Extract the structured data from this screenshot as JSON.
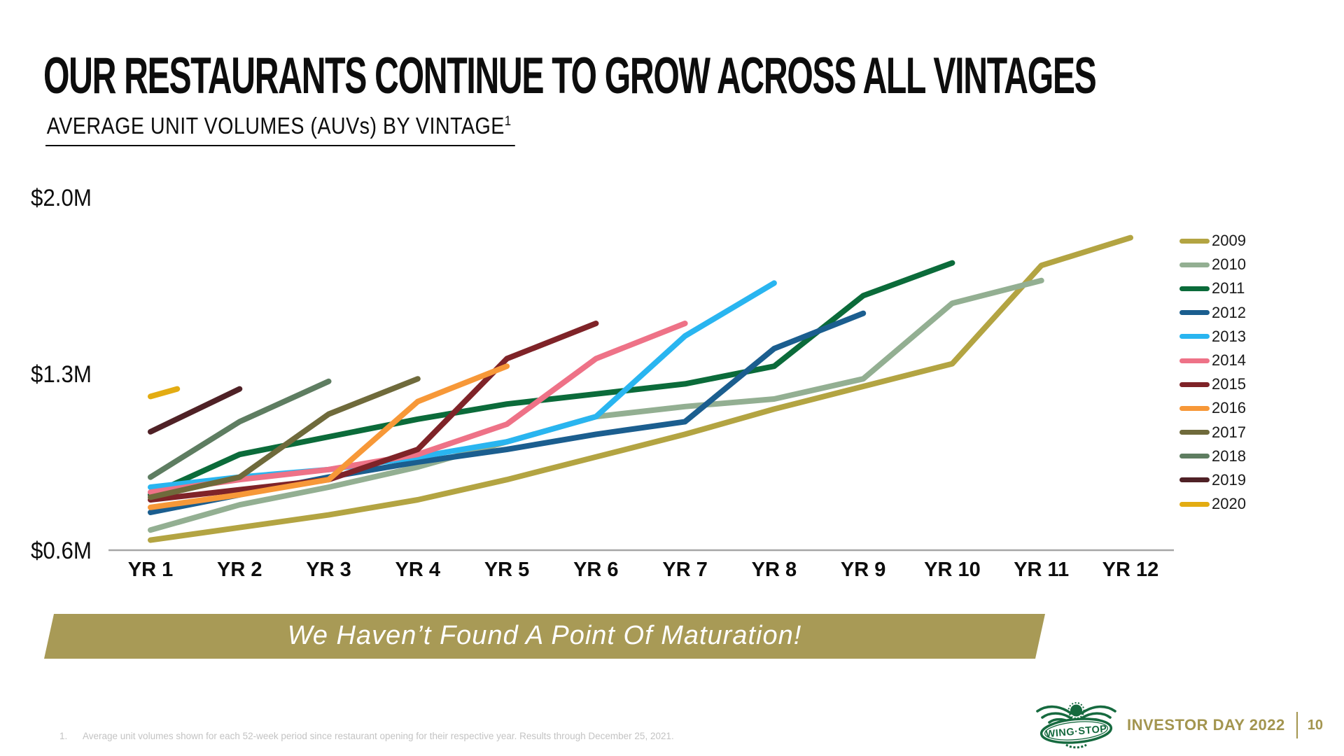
{
  "page": {
    "title": "OUR RESTAURANTS CONTINUE TO GROW ACROSS ALL VINTAGES",
    "subtitle": "AVERAGE UNIT VOLUMES (AUVs) BY VINTAGE",
    "subtitle_superscript": "1",
    "banner": "We Haven’t Found A Point Of Maturation!",
    "footnote_number": "1.",
    "footnote": "Average unit volumes shown for each 52-week period since restaurant opening for their respective year. Results through December 25, 2021.",
    "footer_brand": "INVESTOR DAY 2022",
    "page_number": "10",
    "logo_text": "WING·STOP"
  },
  "colors": {
    "accent_olive": "#a89a56",
    "brand_gold": "#a3954f",
    "logo_green": "#166a3f",
    "axis_gray": "#a6a6a6",
    "footnote_gray": "#c3c3c3",
    "text_black": "#0d0d0d"
  },
  "chart_data": {
    "type": "line",
    "title": "AVERAGE UNIT VOLUMES (AUVs) BY VINTAGE",
    "unit": "$M",
    "ylim": [
      0.6,
      2.0
    ],
    "grid": false,
    "legend_position": "right",
    "y_labels": [
      {
        "text": "$2.0M",
        "value": 2.0
      },
      {
        "text": "$1.3M",
        "value": 1.3
      },
      {
        "text": "$0.6M",
        "value": 0.6
      }
    ],
    "x_ticks": [
      "YR 1",
      "YR 2",
      "YR 3",
      "YR 4",
      "YR 5",
      "YR 6",
      "YR 7",
      "YR 8",
      "YR 9",
      "YR 10",
      "YR 11",
      "YR 12"
    ],
    "series": [
      {
        "name": "2009",
        "color": "#b3a442",
        "x": [
          1,
          2,
          3,
          4,
          5,
          6,
          7,
          8,
          9,
          10,
          11,
          12
        ],
        "values": [
          0.64,
          0.69,
          0.74,
          0.8,
          0.88,
          0.97,
          1.06,
          1.16,
          1.25,
          1.34,
          1.73,
          1.84
        ]
      },
      {
        "name": "2010",
        "color": "#93af92",
        "x": [
          1,
          2,
          3,
          4,
          5,
          6,
          7,
          8,
          9,
          10,
          11
        ],
        "values": [
          0.68,
          0.78,
          0.85,
          0.93,
          1.03,
          1.13,
          1.17,
          1.2,
          1.28,
          1.58,
          1.67
        ]
      },
      {
        "name": "2011",
        "color": "#0b6b3a",
        "x": [
          1,
          2,
          3,
          4,
          5,
          6,
          7,
          8,
          9,
          10
        ],
        "values": [
          0.82,
          0.98,
          1.05,
          1.12,
          1.18,
          1.22,
          1.26,
          1.33,
          1.61,
          1.74
        ]
      },
      {
        "name": "2012",
        "color": "#1b5e8f",
        "x": [
          1,
          2,
          3,
          4,
          5,
          6,
          7,
          8,
          9
        ],
        "values": [
          0.75,
          0.82,
          0.89,
          0.95,
          1.0,
          1.06,
          1.11,
          1.4,
          1.54
        ]
      },
      {
        "name": "2013",
        "color": "#29b5f0",
        "x": [
          1,
          2,
          3,
          4,
          5,
          6,
          7,
          8
        ],
        "values": [
          0.85,
          0.89,
          0.92,
          0.97,
          1.03,
          1.13,
          1.45,
          1.66
        ]
      },
      {
        "name": "2014",
        "color": "#ee7287",
        "x": [
          1,
          2,
          3,
          4,
          5,
          6,
          7
        ],
        "values": [
          0.83,
          0.88,
          0.92,
          0.98,
          1.1,
          1.36,
          1.5
        ]
      },
      {
        "name": "2015",
        "color": "#7f2328",
        "x": [
          1,
          2,
          3,
          4,
          5,
          6
        ],
        "values": [
          0.8,
          0.84,
          0.88,
          1.0,
          1.36,
          1.5
        ]
      },
      {
        "name": "2016",
        "color": "#f79838",
        "x": [
          1,
          2,
          3,
          4,
          5
        ],
        "values": [
          0.77,
          0.82,
          0.88,
          1.19,
          1.33
        ]
      },
      {
        "name": "2017",
        "color": "#6f6a3b",
        "x": [
          1,
          2,
          3,
          4
        ],
        "values": [
          0.81,
          0.89,
          1.14,
          1.28
        ]
      },
      {
        "name": "2018",
        "color": "#5e7d61",
        "x": [
          1,
          2,
          3
        ],
        "values": [
          0.89,
          1.11,
          1.27
        ]
      },
      {
        "name": "2019",
        "color": "#4f2126",
        "x": [
          1,
          2
        ],
        "values": [
          1.07,
          1.24
        ]
      },
      {
        "name": "2020",
        "color": "#e3ac12",
        "x": [
          1,
          1.3
        ],
        "values": [
          1.21,
          1.24
        ]
      }
    ]
  }
}
